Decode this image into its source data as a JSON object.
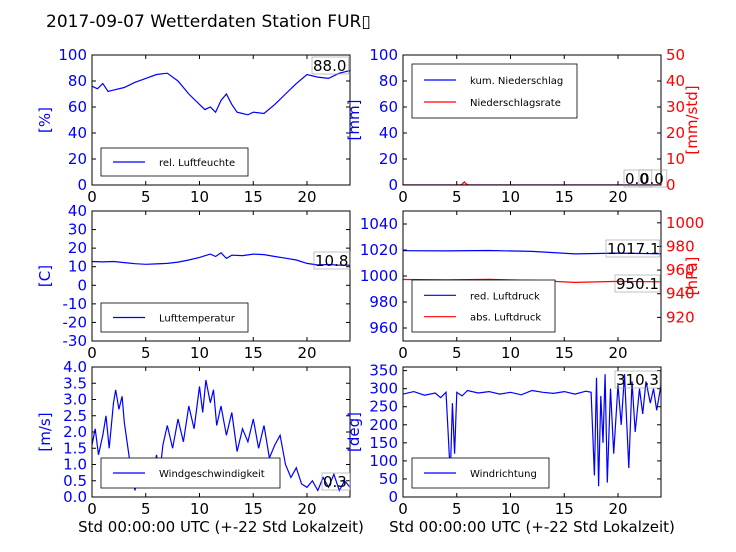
{
  "title": "2017-09-07 Wetterdaten Station FUR▯",
  "colors": {
    "blue": "#0000ff",
    "red": "#ff0000",
    "black": "#000000"
  },
  "chart_data": [
    {
      "type": "line",
      "xlim": [
        0,
        24
      ],
      "xticks": [
        0,
        5,
        10,
        15,
        20
      ],
      "ylabel": "[%]",
      "ylim": [
        0,
        100
      ],
      "yticks": [
        0,
        20,
        40,
        60,
        80,
        100
      ],
      "legend": "bottom-left",
      "series": [
        {
          "name": "rel. Luftfeuchte",
          "color": "#0000ff",
          "x": [
            0,
            0.5,
            1,
            1.5,
            2,
            3,
            4,
            5,
            6,
            7,
            8,
            9,
            10,
            10.5,
            11,
            11.5,
            12,
            12.5,
            13,
            13.5,
            14,
            14.5,
            15,
            16,
            17,
            18,
            19,
            20,
            21,
            22,
            23,
            24
          ],
          "y": [
            76,
            74,
            78,
            72,
            73,
            75,
            79,
            82,
            85,
            86,
            80,
            70,
            62,
            58,
            60,
            56,
            65,
            70,
            62,
            56,
            55,
            54,
            56,
            55,
            62,
            70,
            78,
            85,
            83,
            82,
            86,
            88
          ]
        }
      ],
      "annotations": [
        "88.0"
      ]
    },
    {
      "type": "line",
      "xlim": [
        0,
        24
      ],
      "xticks": [
        0,
        5,
        10,
        15,
        20
      ],
      "ylabel": "[mm]",
      "ylim": [
        0,
        100
      ],
      "yticks": [
        0,
        20,
        40,
        60,
        80,
        100
      ],
      "ylabel_right": "[mm/std]",
      "ylim_right": [
        0,
        50
      ],
      "yticks_right": [
        0,
        10,
        20,
        30,
        40,
        50
      ],
      "legend": "top-left",
      "series": [
        {
          "name": "kum. Niederschlag",
          "color": "#0000ff",
          "x": [
            0,
            24
          ],
          "y": [
            0,
            0
          ]
        },
        {
          "name": "Niederschlagsrate",
          "color": "#ff0000",
          "axis": "right",
          "x": [
            0,
            5.3,
            5.5,
            5.7,
            5.9,
            6.1,
            24
          ],
          "y": [
            0,
            0,
            0.3,
            1.2,
            0.4,
            0,
            0
          ]
        }
      ],
      "annotations": [
        "0.0",
        "0.0"
      ]
    },
    {
      "type": "line",
      "xlim": [
        0,
        24
      ],
      "xticks": [
        0,
        5,
        10,
        15,
        20
      ],
      "ylabel": "[C]",
      "ylim": [
        -30,
        40
      ],
      "yticks": [
        -30,
        -20,
        -10,
        0,
        10,
        20,
        30,
        40
      ],
      "legend": "bottom-left",
      "series": [
        {
          "name": "Lufttemperatur",
          "color": "#0000ff",
          "x": [
            0,
            1,
            2,
            3,
            4,
            5,
            6,
            7,
            8,
            9,
            10,
            11,
            11.5,
            12,
            12.5,
            13,
            14,
            15,
            16,
            17,
            18,
            19,
            20,
            21,
            22,
            23,
            24
          ],
          "y": [
            12.8,
            12.6,
            12.8,
            12.2,
            11.6,
            11.3,
            11.5,
            11.8,
            12.5,
            13.6,
            15.0,
            16.8,
            15.5,
            17.5,
            14.5,
            16.2,
            16.0,
            16.8,
            16.5,
            15.5,
            14.6,
            13.6,
            11.8,
            10.9,
            11.2,
            10.8,
            10.8
          ]
        }
      ],
      "annotations": [
        "10.8"
      ]
    },
    {
      "type": "line",
      "xlim": [
        0,
        24
      ],
      "xticks": [
        0,
        5,
        10,
        15,
        20
      ],
      "ylabel": "",
      "ylim": [
        950,
        1050
      ],
      "yticks": [
        960,
        980,
        1000,
        1020,
        1040
      ],
      "ylabel_right": "[hPa]",
      "ylim_right": [
        900,
        1010
      ],
      "yticks_right": [
        920,
        940,
        960,
        980,
        1000
      ],
      "legend": "bottom-left",
      "series": [
        {
          "name": "red. Luftdruck",
          "color": "#0000ff",
          "x": [
            0,
            4,
            8,
            12,
            16,
            20,
            24
          ],
          "y": [
            1019.5,
            1019.3,
            1019.6,
            1018.9,
            1017.0,
            1017.6,
            1017.1
          ]
        },
        {
          "name": "abs. Luftdruck",
          "color": "#ff0000",
          "axis": "right",
          "x": [
            0,
            4,
            8,
            12,
            16,
            20,
            24
          ],
          "y": [
            952.0,
            951.8,
            952.1,
            951.4,
            949.6,
            950.4,
            950.1
          ]
        }
      ],
      "annotations": [
        "1017.1",
        "950.1"
      ]
    },
    {
      "type": "line",
      "xlim": [
        0,
        24
      ],
      "xticks": [
        0,
        5,
        10,
        15,
        20
      ],
      "xlabel": "Std 00:00:00 UTC (+-22 Std Lokalzeit)",
      "ylabel": "[m/s]",
      "ylim": [
        0,
        4
      ],
      "yticks": [
        0.0,
        0.5,
        1.0,
        1.5,
        2.0,
        2.5,
        3.0,
        3.5,
        4.0
      ],
      "legend": "bottom-left",
      "series": [
        {
          "name": "Windgeschwindigkeit",
          "color": "#0000ff",
          "x": [
            0,
            0.3,
            0.6,
            1,
            1.3,
            1.6,
            2,
            2.2,
            2.5,
            2.8,
            3,
            3.3,
            3.6,
            4,
            4.3,
            4.6,
            5,
            5.3,
            5.6,
            6,
            6.3,
            6.6,
            7,
            7.5,
            8,
            8.5,
            9,
            9.5,
            10,
            10.3,
            10.6,
            11,
            11.3,
            11.6,
            12,
            12.5,
            13,
            13.5,
            14,
            14.5,
            15,
            15.5,
            16,
            16.5,
            17,
            17.5,
            18,
            18.5,
            19,
            19.5,
            20,
            20.5,
            21,
            21.5,
            22,
            22.5,
            23,
            23.5,
            24
          ],
          "y": [
            1.6,
            2.1,
            1.3,
            1.9,
            2.5,
            1.5,
            2.9,
            3.3,
            2.7,
            3.1,
            2.3,
            1.6,
            0.9,
            0.2,
            0.8,
            1.2,
            0.6,
            1.1,
            0.4,
            1.3,
            0.7,
            1.6,
            2.2,
            1.5,
            2.4,
            1.7,
            2.8,
            2.1,
            3.4,
            2.6,
            3.6,
            2.9,
            3.3,
            2.2,
            2.8,
            1.9,
            2.6,
            1.4,
            2.1,
            1.7,
            2.4,
            1.5,
            2.2,
            1.2,
            1.6,
            1.9,
            1.0,
            0.6,
            0.9,
            0.4,
            0.3,
            0.5,
            0.2,
            0.6,
            0.3,
            0.7,
            0.2,
            0.5,
            0.3
          ]
        }
      ],
      "annotations": [
        "0.3"
      ]
    },
    {
      "type": "line",
      "xlim": [
        0,
        24
      ],
      "xticks": [
        0,
        5,
        10,
        15,
        20
      ],
      "xlabel": "Std 00:00:00 UTC (+-22 Std Lokalzeit)",
      "ylabel": "[deg]",
      "ylim": [
        0,
        360
      ],
      "yticks": [
        0,
        50,
        100,
        150,
        200,
        250,
        300,
        350
      ],
      "legend": "bottom-left",
      "series": [
        {
          "name": "Windrichtung",
          "color": "#0000ff",
          "x": [
            0,
            1,
            2,
            3,
            3.5,
            4,
            4.2,
            4.4,
            4.6,
            4.8,
            5,
            5.5,
            6,
            7,
            8,
            9,
            10,
            11,
            12,
            13,
            14,
            15,
            16,
            17,
            17.5,
            17.8,
            18,
            18.2,
            18.4,
            18.6,
            18.8,
            19,
            19.3,
            19.6,
            20,
            20.3,
            20.6,
            21,
            21.3,
            21.6,
            22,
            22.3,
            22.6,
            23,
            23.3,
            23.6,
            24
          ],
          "y": [
            285,
            292,
            282,
            288,
            275,
            290,
            180,
            60,
            260,
            120,
            290,
            280,
            295,
            288,
            292,
            285,
            290,
            283,
            295,
            290,
            287,
            292,
            285,
            293,
            290,
            60,
            330,
            30,
            280,
            150,
            340,
            40,
            300,
            120,
            310,
            200,
            340,
            80,
            320,
            180,
            300,
            230,
            320,
            260,
            300,
            240,
            310
          ]
        }
      ],
      "annotations": [
        "310.3"
      ]
    }
  ]
}
